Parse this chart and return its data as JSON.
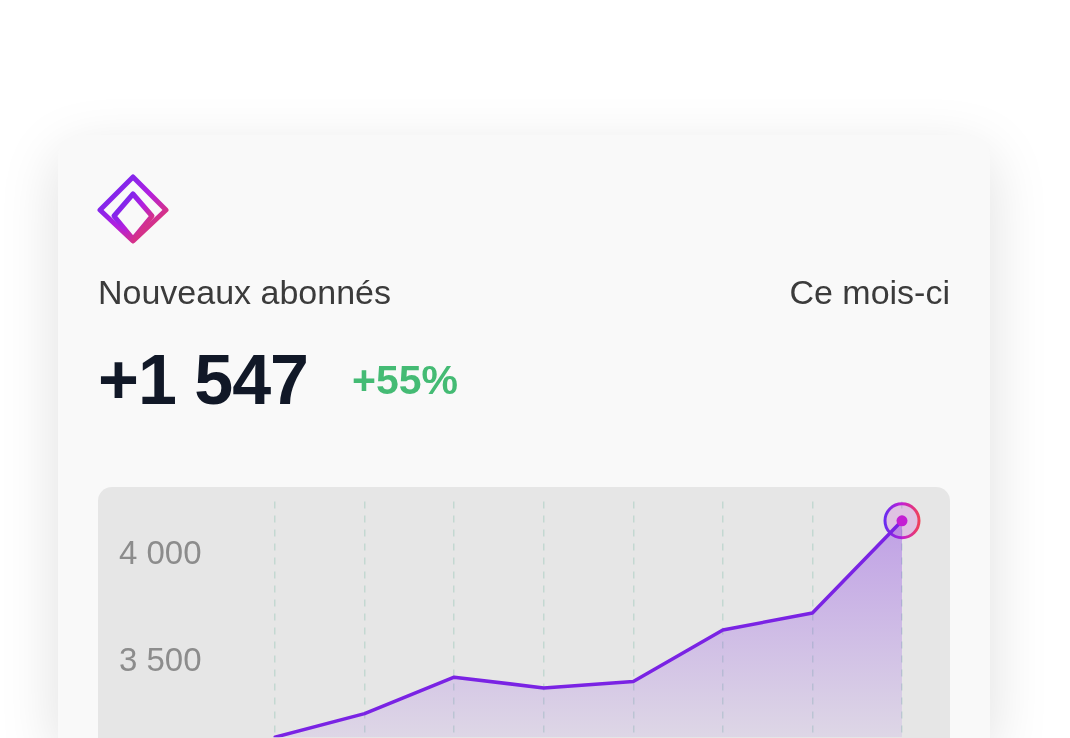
{
  "chart_data": {
    "type": "area",
    "title": "Nouveaux abonnés",
    "subtitle": "Ce mois-ci",
    "annotations": [
      "+1 547",
      "+55%"
    ],
    "categories": [
      null,
      null,
      null,
      null,
      null,
      null,
      null,
      null
    ],
    "series": [
      {
        "color": "#7a23e4",
        "values": [
          3150,
          3260,
          3430,
          3380,
          3410,
          3650,
          3730,
          4160
        ]
      },
      {
        "type": "scatter",
        "marker": "circle",
        "color": "#c41fd3",
        "values": [
          null,
          null,
          null,
          null,
          null,
          null,
          null,
          4160
        ]
      }
    ],
    "ylim": [
      3150,
      4250
    ],
    "yticks": [
      {
        "value": 4000,
        "label": "4 000"
      },
      {
        "value": 3500,
        "label": "3 500"
      }
    ],
    "grid": "x",
    "marker": "none"
  }
}
